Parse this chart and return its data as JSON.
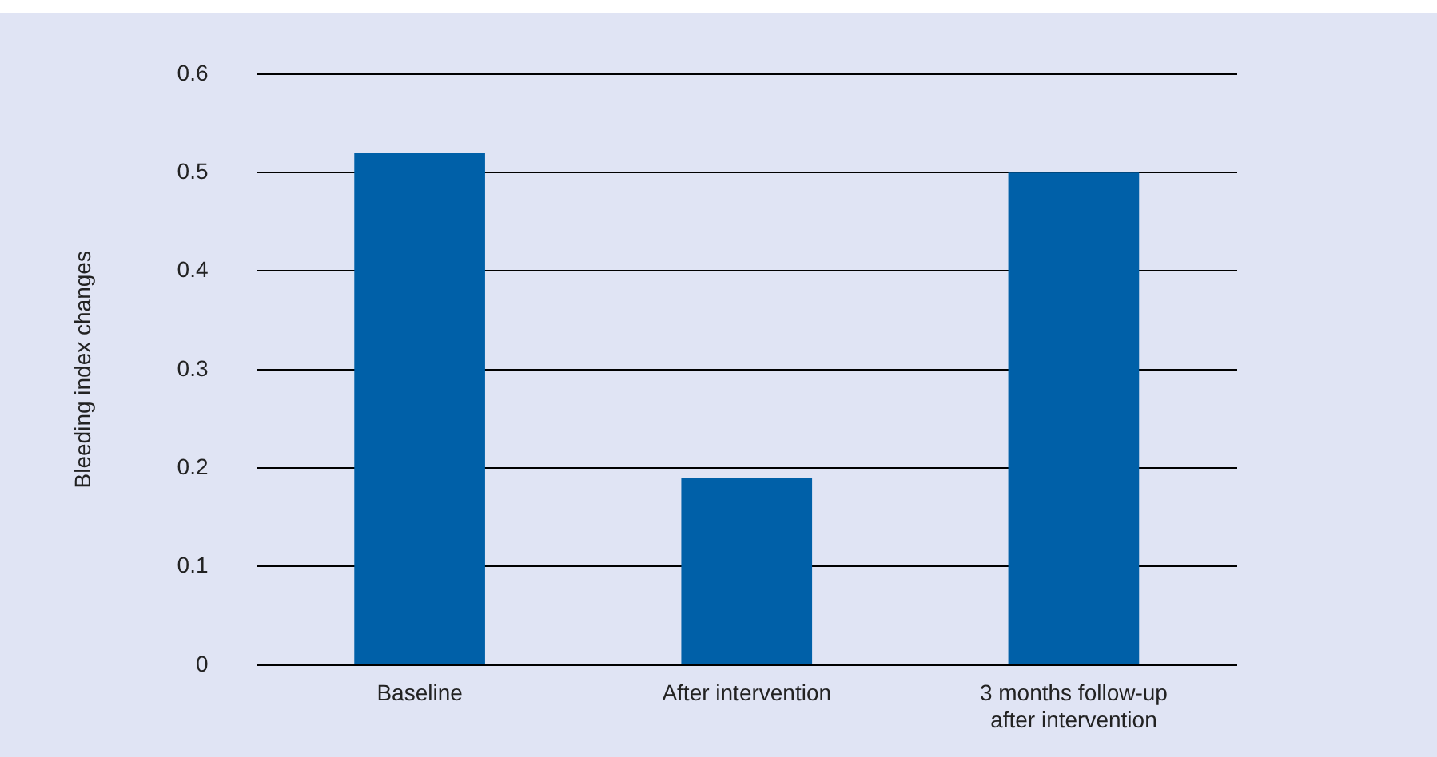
{
  "chart_data": {
    "type": "bar",
    "ylabel": "Bleeding index changes",
    "categories": [
      "Baseline",
      "After intervention",
      "3 months follow-up after intervention"
    ],
    "values": [
      0.52,
      0.19,
      0.5
    ],
    "color": "#0060a8",
    "ylim": [
      0,
      0.6
    ],
    "yticks": [
      0,
      0.1,
      0.2,
      0.3,
      0.4,
      0.5,
      0.6
    ],
    "grid": "y"
  }
}
